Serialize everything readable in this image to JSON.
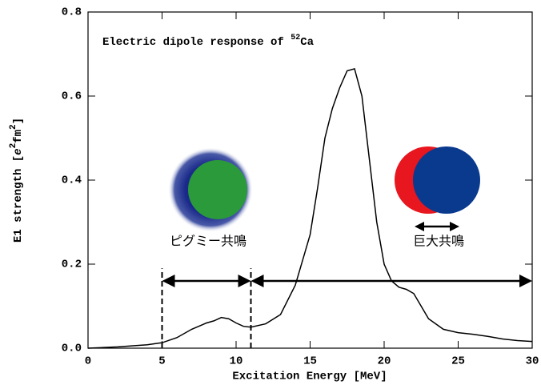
{
  "chart_data": {
    "type": "line",
    "title_parts": [
      "Electric dipole response of ",
      "52",
      "Ca"
    ],
    "x_label": "Excitation Energy [MeV]",
    "y_label_parts": [
      "E1 strength [",
      "e",
      "2",
      "fm",
      "2",
      "]"
    ],
    "x": [
      0,
      2,
      4,
      5,
      6,
      7,
      8,
      8.5,
      9,
      9.5,
      10,
      10.5,
      11,
      12,
      13,
      14,
      15,
      15.5,
      16,
      16.5,
      17,
      17.5,
      18,
      18.5,
      19,
      19.5,
      20,
      20.5,
      21,
      21.5,
      22,
      22.5,
      23,
      24,
      25,
      26,
      27,
      28,
      29,
      30
    ],
    "series": [
      {
        "color": "#000000",
        "values": [
          0.0,
          0.003,
          0.008,
          0.013,
          0.025,
          0.045,
          0.06,
          0.065,
          0.073,
          0.07,
          0.06,
          0.052,
          0.05,
          0.058,
          0.08,
          0.15,
          0.27,
          0.38,
          0.5,
          0.57,
          0.62,
          0.66,
          0.665,
          0.6,
          0.45,
          0.3,
          0.2,
          0.16,
          0.145,
          0.14,
          0.13,
          0.1,
          0.07,
          0.045,
          0.037,
          0.033,
          0.028,
          0.022,
          0.018,
          0.016
        ]
      }
    ],
    "xlim": [
      0,
      30
    ],
    "ylim": [
      0,
      0.8
    ],
    "xticks": [
      0,
      5,
      10,
      15,
      20,
      25,
      30
    ],
    "yticks": [
      {
        "value": 0,
        "label": "0.0"
      },
      {
        "value": 0.2,
        "label": "0.2"
      },
      {
        "value": 0.4,
        "label": "0.4"
      },
      {
        "value": 0.6,
        "label": "0.6"
      },
      {
        "value": 0.8,
        "label": "0.8"
      }
    ],
    "annotations": {
      "pygmy_label": "ピグミー共鳴",
      "giant_label": "巨大共鳴",
      "dashed_x": [
        5,
        11
      ],
      "dashed_top": 0.19,
      "arrow_y": 0.16,
      "arrows": [
        [
          5,
          11
        ],
        [
          11,
          30
        ]
      ]
    }
  }
}
